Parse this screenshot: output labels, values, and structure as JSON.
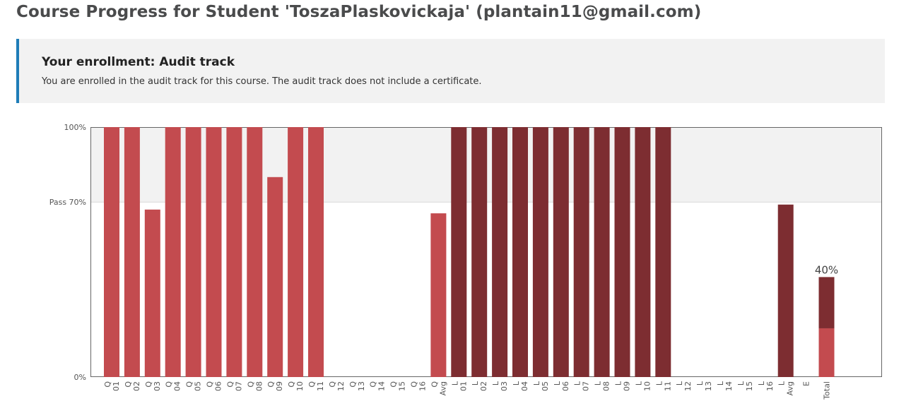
{
  "page": {
    "title": "Course Progress for Student 'ToszaPlaskovickaja' (plantain11@gmail.com)"
  },
  "enrollment": {
    "heading": "Your enrollment: Audit track",
    "text": "You are enrolled in the audit track for this course. The audit track does not include a certificate."
  },
  "colors": {
    "quiz_bar": "#c34b4f",
    "lab_bar": "#7d2d31",
    "pass_zone": "#f2f2f2",
    "accent_border": "#1e7db8"
  },
  "chart_data": {
    "type": "bar",
    "y_tick_labels": [
      "100%",
      "Pass 70%",
      "0%"
    ],
    "y_ticks": [
      100,
      70,
      0
    ],
    "ylim": [
      0,
      100
    ],
    "pass_threshold": 70,
    "categories": [
      "Q 01",
      "Q 02",
      "Q 03",
      "Q 04",
      "Q 05",
      "Q 06",
      "Q 07",
      "Q 08",
      "Q 09",
      "Q 10",
      "Q 11",
      "Q 12",
      "Q 13",
      "Q 14",
      "Q 15",
      "Q 16",
      "Q Avg",
      "L 01",
      "L 02",
      "L 03",
      "L 04",
      "L 05",
      "L 06",
      "L 07",
      "L 08",
      "L 09",
      "L 10",
      "L 11",
      "L 12",
      "L 13",
      "L 14",
      "L 15",
      "L 16",
      "L Avg",
      "E",
      "Total"
    ],
    "values": [
      100,
      100,
      67,
      100,
      100,
      100,
      100,
      100,
      80,
      100,
      100,
      0,
      0,
      0,
      0,
      0,
      65.5,
      100,
      100,
      100,
      100,
      100,
      100,
      100,
      100,
      100,
      100,
      100,
      0,
      0,
      0,
      0,
      0,
      69,
      0,
      40
    ],
    "bar_type": [
      "quiz",
      "quiz",
      "quiz",
      "quiz",
      "quiz",
      "quiz",
      "quiz",
      "quiz",
      "quiz",
      "quiz",
      "quiz",
      "quiz",
      "quiz",
      "quiz",
      "quiz",
      "quiz",
      "quiz",
      "lab",
      "lab",
      "lab",
      "lab",
      "lab",
      "lab",
      "lab",
      "lab",
      "lab",
      "lab",
      "lab",
      "lab",
      "lab",
      "lab",
      "lab",
      "lab",
      "lab",
      "exam",
      "total"
    ],
    "total_breakdown": [
      {
        "name": "quiz",
        "value": 19.5
      },
      {
        "name": "lab",
        "value": 20.5
      }
    ],
    "total_label": "40%"
  }
}
